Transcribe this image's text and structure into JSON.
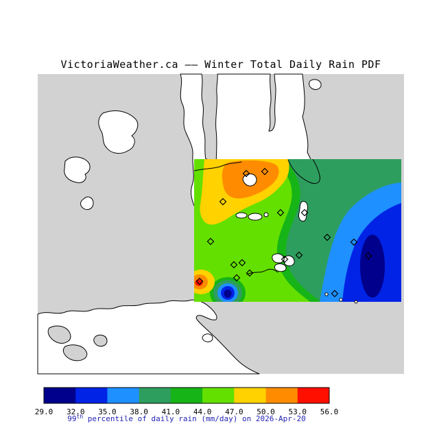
{
  "title": "VictoriaWeather.ca —— Winter Total Daily Rain PDF",
  "caption": {
    "prefix": "99",
    "sup": "th",
    "rest": " percentile of daily rain (mm/day) on 2026-Apr-20",
    "color": "#2323b4"
  },
  "colorbar": {
    "ticks": [
      "29.0",
      "32.0",
      "35.0",
      "38.0",
      "41.0",
      "44.0",
      "47.0",
      "50.0",
      "53.0",
      "56.0"
    ],
    "colors": [
      "#00008c",
      "#0023e6",
      "#1e90ff",
      "#2e9e5e",
      "#16b416",
      "#64e000",
      "#ffd200",
      "#ff8c00",
      "#ff0f00"
    ]
  },
  "map": {
    "colors": {
      "water": "#d2d2d2",
      "land": "#ffffff",
      "coastline": "#000000"
    },
    "markers": [
      [
        359,
        253
      ],
      [
        386,
        250
      ],
      [
        325,
        294
      ],
      [
        409,
        310
      ],
      [
        444,
        310
      ],
      [
        307,
        352
      ],
      [
        341,
        386
      ],
      [
        353,
        383
      ],
      [
        364,
        398
      ],
      [
        291,
        410
      ],
      [
        345,
        405
      ],
      [
        415,
        378
      ],
      [
        436,
        372
      ],
      [
        477,
        346
      ],
      [
        516,
        353
      ],
      [
        537,
        373
      ],
      [
        488,
        428
      ]
    ]
  },
  "chart_data": {
    "type": "heatmap",
    "title": "VictoriaWeather.ca —— Winter Total Daily Rain PDF",
    "variable": "99th percentile of daily rain",
    "units": "mm/day",
    "date": "2026-Apr-20",
    "scale_ticks": [
      29.0,
      32.0,
      35.0,
      38.0,
      41.0,
      44.0,
      47.0,
      50.0,
      53.0,
      56.0
    ],
    "scale_colors": [
      "#00008c",
      "#0023e6",
      "#1e90ff",
      "#2e9e5e",
      "#16b416",
      "#64e000",
      "#ffd200",
      "#ff8c00",
      "#ff0f00"
    ],
    "legend_position": "bottom"
  }
}
